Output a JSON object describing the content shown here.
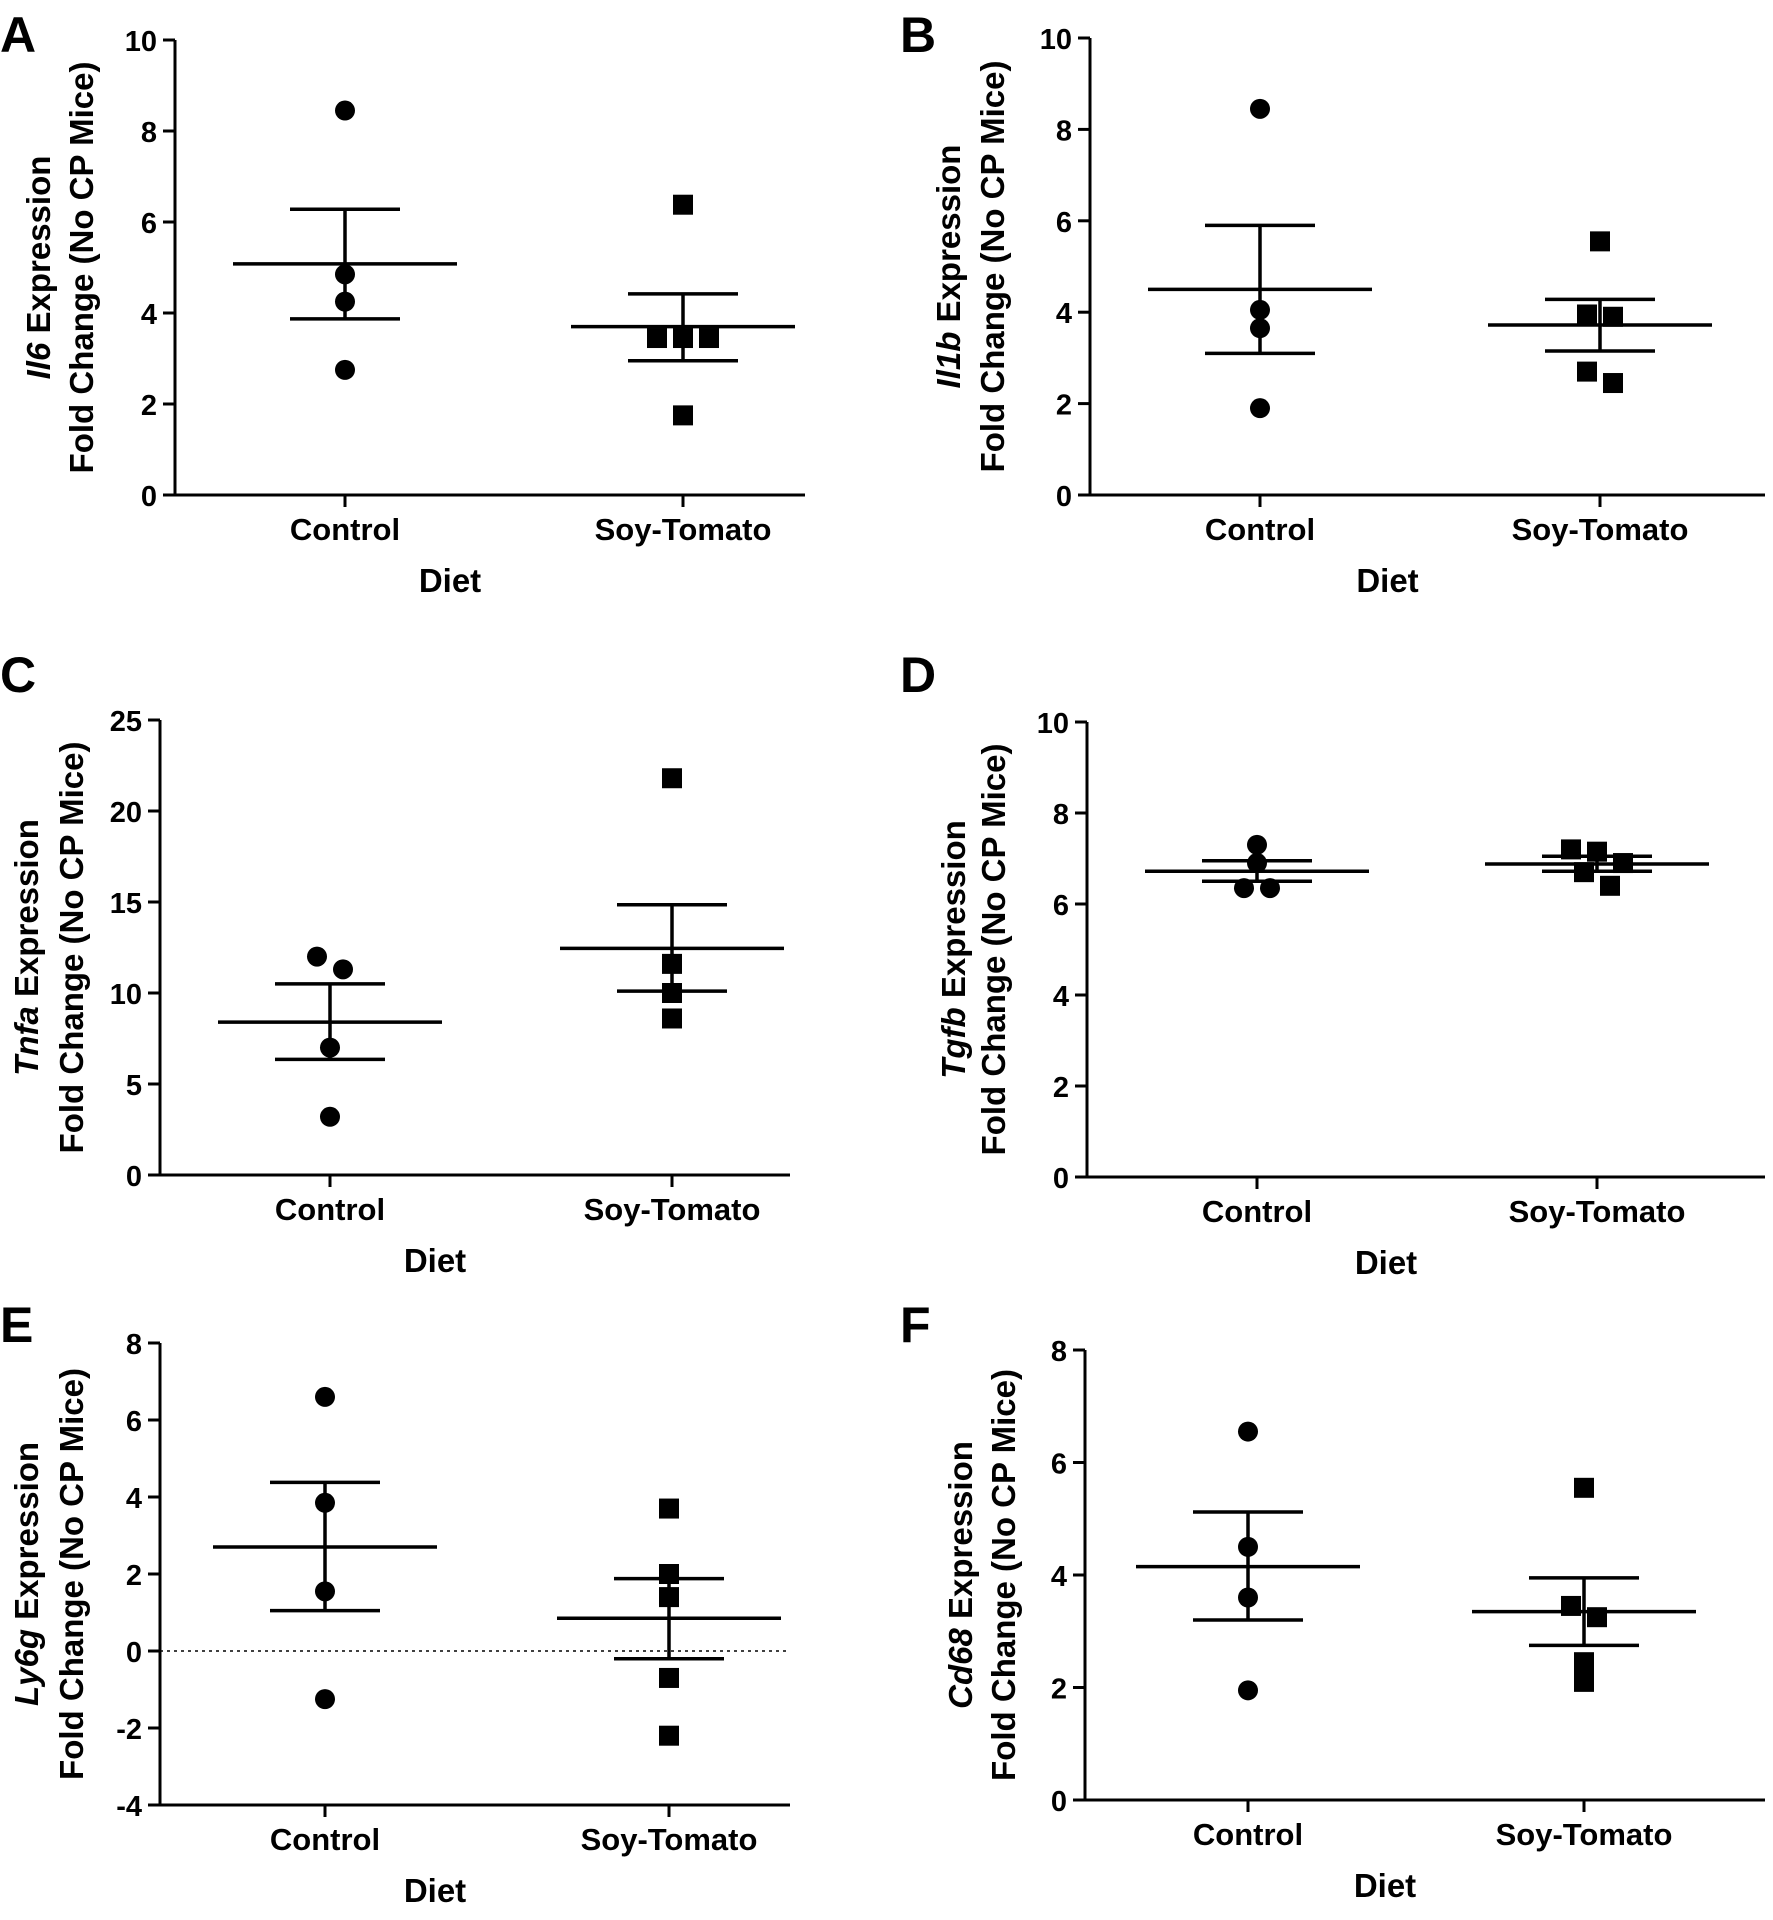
{
  "chart_data": [
    {
      "panel": "A",
      "type": "scatter",
      "gene": "Il6",
      "ylabel_suffix": " Expression",
      "ylabel_line2": "Fold Change (No CP Mice)",
      "xlabel": "Diet",
      "categories": [
        "Control",
        "Soy-Tomato"
      ],
      "ylim": [
        0,
        10
      ],
      "yticks": [
        "0",
        "2",
        "4",
        "6",
        "8",
        "10"
      ],
      "zero_line": false,
      "groups": [
        {
          "name": "Control",
          "marker": "circle",
          "points": [
            8.45,
            4.85,
            4.25,
            2.75
          ],
          "mean": 5.08,
          "sem_low": 3.87,
          "sem_high": 6.28
        },
        {
          "name": "Soy-Tomato",
          "marker": "square",
          "points": [
            6.38,
            3.45,
            3.45,
            3.45,
            1.75
          ],
          "mean": 3.7,
          "sem_low": 2.95,
          "sem_high": 4.42
        }
      ]
    },
    {
      "panel": "B",
      "type": "scatter",
      "gene": "Il1b",
      "ylabel_suffix": " Expression",
      "ylabel_line2": "Fold Change (No CP Mice)",
      "xlabel": "Diet",
      "categories": [
        "Control",
        "Soy-Tomato"
      ],
      "ylim": [
        0,
        10
      ],
      "yticks": [
        "0",
        "2",
        "4",
        "6",
        "8",
        "10"
      ],
      "zero_line": false,
      "groups": [
        {
          "name": "Control",
          "marker": "circle",
          "points": [
            8.45,
            4.05,
            3.65,
            1.9
          ],
          "mean": 4.5,
          "sem_low": 3.1,
          "sem_high": 5.9
        },
        {
          "name": "Soy-Tomato",
          "marker": "square",
          "points": [
            5.55,
            3.95,
            3.9,
            2.7,
            2.45
          ],
          "mean": 3.72,
          "sem_low": 3.15,
          "sem_high": 4.28
        }
      ]
    },
    {
      "panel": "C",
      "type": "scatter",
      "gene": "Tnfa",
      "ylabel_suffix": " Expression",
      "ylabel_line2": "Fold Change (No CP Mice)",
      "xlabel": "Diet",
      "categories": [
        "Control",
        "Soy-Tomato"
      ],
      "ylim": [
        0,
        25
      ],
      "yticks": [
        "0",
        "5",
        "10",
        "15",
        "20",
        "25"
      ],
      "zero_line": false,
      "groups": [
        {
          "name": "Control",
          "marker": "circle",
          "points": [
            12.0,
            11.3,
            7.0,
            3.2
          ],
          "mean": 8.4,
          "sem_low": 6.35,
          "sem_high": 10.5
        },
        {
          "name": "Soy-Tomato",
          "marker": "square",
          "points": [
            21.8,
            11.6,
            10.0,
            8.6
          ],
          "mean": 12.45,
          "sem_low": 10.1,
          "sem_high": 14.85
        }
      ]
    },
    {
      "panel": "D",
      "type": "scatter",
      "gene": "Tgfb",
      "ylabel_suffix": " Expression",
      "ylabel_line2": "Fold Change (No CP Mice)",
      "xlabel": "Diet",
      "categories": [
        "Control",
        "Soy-Tomato"
      ],
      "ylim": [
        0,
        10
      ],
      "yticks": [
        "0",
        "2",
        "4",
        "6",
        "8",
        "10"
      ],
      "zero_line": false,
      "groups": [
        {
          "name": "Control",
          "marker": "circle",
          "points": [
            7.3,
            6.9,
            6.35,
            6.35
          ],
          "mean": 6.72,
          "sem_low": 6.5,
          "sem_high": 6.95
        },
        {
          "name": "Soy-Tomato",
          "marker": "square",
          "points": [
            7.2,
            7.15,
            6.9,
            6.7,
            6.4
          ],
          "mean": 6.88,
          "sem_low": 6.72,
          "sem_high": 7.05
        }
      ]
    },
    {
      "panel": "E",
      "type": "scatter",
      "gene": "Ly6g",
      "ylabel_suffix": " Expression",
      "ylabel_line2": "Fold Change (No CP Mice)",
      "xlabel": "Diet",
      "categories": [
        "Control",
        "Soy-Tomato"
      ],
      "ylim": [
        -4,
        8
      ],
      "yticks": [
        "-4",
        "-2",
        "0",
        "2",
        "4",
        "6",
        "8"
      ],
      "zero_line": true,
      "groups": [
        {
          "name": "Control",
          "marker": "circle",
          "points": [
            6.6,
            3.85,
            1.55,
            -1.25
          ],
          "mean": 2.7,
          "sem_low": 1.05,
          "sem_high": 4.38
        },
        {
          "name": "Soy-Tomato",
          "marker": "square",
          "points": [
            3.7,
            2.0,
            1.4,
            -0.7,
            -2.2
          ],
          "mean": 0.85,
          "sem_low": -0.2,
          "sem_high": 1.88
        }
      ]
    },
    {
      "panel": "F",
      "type": "scatter",
      "gene": "Cd68",
      "ylabel_suffix": " Expression",
      "ylabel_line2": "Fold Change (No CP Mice)",
      "xlabel": "Diet",
      "categories": [
        "Control",
        "Soy-Tomato"
      ],
      "ylim": [
        0,
        8
      ],
      "yticks": [
        "0",
        "2",
        "4",
        "6",
        "8"
      ],
      "zero_line": false,
      "groups": [
        {
          "name": "Control",
          "marker": "circle",
          "points": [
            6.55,
            4.5,
            3.6,
            1.95
          ],
          "mean": 4.15,
          "sem_low": 3.2,
          "sem_high": 5.12
        },
        {
          "name": "Soy-Tomato",
          "marker": "square",
          "points": [
            5.55,
            3.45,
            3.25,
            2.45,
            2.1
          ],
          "mean": 3.35,
          "sem_low": 2.75,
          "sem_high": 3.95
        }
      ]
    }
  ]
}
